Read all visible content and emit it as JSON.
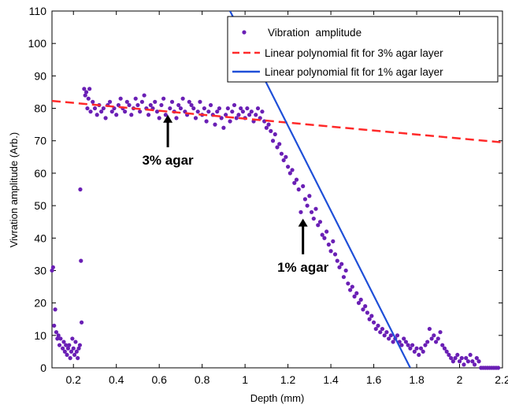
{
  "chart_data": {
    "type": "scatter",
    "xlabel": "Depth (mm)",
    "ylabel": "Vivration amplitude (Arb.)",
    "xlim": [
      0.1,
      2.2
    ],
    "ylim": [
      0,
      110
    ],
    "xticks": [
      0.2,
      0.4,
      0.6,
      0.8,
      1,
      1.2,
      1.4,
      1.6,
      1.8,
      2,
      2.2
    ],
    "yticks": [
      0,
      10,
      20,
      30,
      40,
      50,
      60,
      70,
      80,
      90,
      100,
      110
    ],
    "grid": false,
    "legend_position": "top-right",
    "series": [
      {
        "name": "Vibration  amplitude",
        "kind": "points",
        "color": "#6a1fb5",
        "points": [
          [
            0.1,
            30
          ],
          [
            0.105,
            31
          ],
          [
            0.11,
            13
          ],
          [
            0.115,
            18
          ],
          [
            0.12,
            11
          ],
          [
            0.125,
            9
          ],
          [
            0.13,
            10
          ],
          [
            0.135,
            7
          ],
          [
            0.14,
            9
          ],
          [
            0.15,
            6
          ],
          [
            0.155,
            8
          ],
          [
            0.16,
            5
          ],
          [
            0.165,
            7
          ],
          [
            0.17,
            4
          ],
          [
            0.175,
            6
          ],
          [
            0.18,
            7
          ],
          [
            0.185,
            3
          ],
          [
            0.19,
            5
          ],
          [
            0.195,
            9
          ],
          [
            0.2,
            6
          ],
          [
            0.205,
            4
          ],
          [
            0.21,
            8
          ],
          [
            0.215,
            5
          ],
          [
            0.22,
            3
          ],
          [
            0.225,
            6
          ],
          [
            0.23,
            7
          ],
          [
            0.232,
            55
          ],
          [
            0.235,
            33
          ],
          [
            0.238,
            14
          ],
          [
            0.25,
            86
          ],
          [
            0.255,
            84
          ],
          [
            0.26,
            85
          ],
          [
            0.265,
            80
          ],
          [
            0.27,
            83
          ],
          [
            0.275,
            86
          ],
          [
            0.28,
            79
          ],
          [
            0.29,
            82
          ],
          [
            0.3,
            80
          ],
          [
            0.31,
            78
          ],
          [
            0.32,
            81
          ],
          [
            0.33,
            79
          ],
          [
            0.34,
            80
          ],
          [
            0.35,
            77
          ],
          [
            0.36,
            81
          ],
          [
            0.37,
            82
          ],
          [
            0.38,
            79
          ],
          [
            0.39,
            80
          ],
          [
            0.4,
            78
          ],
          [
            0.41,
            81
          ],
          [
            0.42,
            83
          ],
          [
            0.43,
            80
          ],
          [
            0.44,
            79
          ],
          [
            0.45,
            82
          ],
          [
            0.46,
            81
          ],
          [
            0.47,
            78
          ],
          [
            0.48,
            80
          ],
          [
            0.49,
            83
          ],
          [
            0.5,
            81
          ],
          [
            0.51,
            79
          ],
          [
            0.52,
            82
          ],
          [
            0.53,
            84
          ],
          [
            0.54,
            80
          ],
          [
            0.55,
            78
          ],
          [
            0.56,
            81
          ],
          [
            0.57,
            80
          ],
          [
            0.58,
            82
          ],
          [
            0.59,
            79
          ],
          [
            0.6,
            77
          ],
          [
            0.61,
            81
          ],
          [
            0.62,
            83
          ],
          [
            0.63,
            78
          ],
          [
            0.64,
            76
          ],
          [
            0.65,
            80
          ],
          [
            0.66,
            82
          ],
          [
            0.67,
            79
          ],
          [
            0.68,
            77
          ],
          [
            0.69,
            81
          ],
          [
            0.7,
            80
          ],
          [
            0.71,
            83
          ],
          [
            0.72,
            79
          ],
          [
            0.73,
            78
          ],
          [
            0.74,
            82
          ],
          [
            0.75,
            81
          ],
          [
            0.76,
            80
          ],
          [
            0.77,
            77
          ],
          [
            0.78,
            79
          ],
          [
            0.79,
            82
          ],
          [
            0.8,
            78
          ],
          [
            0.81,
            80
          ],
          [
            0.82,
            76
          ],
          [
            0.83,
            79
          ],
          [
            0.84,
            81
          ],
          [
            0.85,
            78
          ],
          [
            0.86,
            75
          ],
          [
            0.87,
            79
          ],
          [
            0.88,
            80
          ],
          [
            0.89,
            77
          ],
          [
            0.9,
            74
          ],
          [
            0.91,
            78
          ],
          [
            0.92,
            80
          ],
          [
            0.93,
            76
          ],
          [
            0.94,
            79
          ],
          [
            0.95,
            81
          ],
          [
            0.96,
            77
          ],
          [
            0.97,
            78
          ],
          [
            0.98,
            80
          ],
          [
            0.99,
            79
          ],
          [
            1.0,
            77
          ],
          [
            1.01,
            80
          ],
          [
            1.02,
            78
          ],
          [
            1.03,
            79
          ],
          [
            1.04,
            76
          ],
          [
            1.05,
            78
          ],
          [
            1.06,
            80
          ],
          [
            1.07,
            77
          ],
          [
            1.08,
            79
          ],
          [
            1.09,
            76
          ],
          [
            1.1,
            74
          ],
          [
            1.11,
            75
          ],
          [
            1.12,
            73
          ],
          [
            1.13,
            70
          ],
          [
            1.14,
            72
          ],
          [
            1.15,
            68
          ],
          [
            1.16,
            69
          ],
          [
            1.17,
            66
          ],
          [
            1.18,
            64
          ],
          [
            1.19,
            65
          ],
          [
            1.2,
            62
          ],
          [
            1.21,
            60
          ],
          [
            1.22,
            61
          ],
          [
            1.23,
            57
          ],
          [
            1.24,
            58
          ],
          [
            1.25,
            55
          ],
          [
            1.26,
            48
          ],
          [
            1.27,
            56
          ],
          [
            1.28,
            52
          ],
          [
            1.29,
            50
          ],
          [
            1.3,
            53
          ],
          [
            1.31,
            48
          ],
          [
            1.32,
            46
          ],
          [
            1.33,
            49
          ],
          [
            1.34,
            44
          ],
          [
            1.35,
            45
          ],
          [
            1.36,
            41
          ],
          [
            1.37,
            40
          ],
          [
            1.38,
            42
          ],
          [
            1.39,
            38
          ],
          [
            1.4,
            36
          ],
          [
            1.41,
            39
          ],
          [
            1.42,
            35
          ],
          [
            1.43,
            33
          ],
          [
            1.44,
            31
          ],
          [
            1.45,
            32
          ],
          [
            1.46,
            28
          ],
          [
            1.47,
            30
          ],
          [
            1.48,
            26
          ],
          [
            1.49,
            24
          ],
          [
            1.5,
            25
          ],
          [
            1.51,
            22
          ],
          [
            1.52,
            23
          ],
          [
            1.53,
            20
          ],
          [
            1.54,
            21
          ],
          [
            1.55,
            18
          ],
          [
            1.56,
            19
          ],
          [
            1.57,
            17
          ],
          [
            1.58,
            15
          ],
          [
            1.59,
            16
          ],
          [
            1.6,
            14
          ],
          [
            1.61,
            12
          ],
          [
            1.62,
            13
          ],
          [
            1.63,
            11
          ],
          [
            1.64,
            12
          ],
          [
            1.65,
            10
          ],
          [
            1.66,
            11
          ],
          [
            1.67,
            9
          ],
          [
            1.68,
            10
          ],
          [
            1.69,
            8
          ],
          [
            1.7,
            9
          ],
          [
            1.71,
            10
          ],
          [
            1.72,
            8
          ],
          [
            1.73,
            7
          ],
          [
            1.74,
            9
          ],
          [
            1.75,
            8
          ],
          [
            1.76,
            7
          ],
          [
            1.77,
            6
          ],
          [
            1.78,
            7
          ],
          [
            1.79,
            5
          ],
          [
            1.8,
            6
          ],
          [
            1.81,
            4
          ],
          [
            1.82,
            6
          ],
          [
            1.83,
            5
          ],
          [
            1.84,
            7
          ],
          [
            1.85,
            8
          ],
          [
            1.86,
            12
          ],
          [
            1.87,
            9
          ],
          [
            1.88,
            10
          ],
          [
            1.89,
            8
          ],
          [
            1.9,
            9
          ],
          [
            1.91,
            11
          ],
          [
            1.92,
            7
          ],
          [
            1.93,
            6
          ],
          [
            1.94,
            5
          ],
          [
            1.95,
            4
          ],
          [
            1.96,
            3
          ],
          [
            1.97,
            2
          ],
          [
            1.98,
            3
          ],
          [
            1.99,
            4
          ],
          [
            2.0,
            2
          ],
          [
            2.01,
            3
          ],
          [
            2.02,
            1
          ],
          [
            2.03,
            3
          ],
          [
            2.04,
            2
          ],
          [
            2.05,
            4
          ],
          [
            2.06,
            2
          ],
          [
            2.07,
            1
          ],
          [
            2.08,
            3
          ],
          [
            2.09,
            2
          ],
          [
            2.1,
            0
          ],
          [
            2.11,
            0
          ],
          [
            2.12,
            0
          ],
          [
            2.13,
            0
          ],
          [
            2.14,
            0
          ],
          [
            2.15,
            0
          ],
          [
            2.16,
            0
          ],
          [
            2.17,
            0
          ],
          [
            2.18,
            0
          ]
        ]
      },
      {
        "name": "Linear polynomial fit for 3% agar layer",
        "kind": "line",
        "style": "dashed",
        "color": "#ff2a2a",
        "x": [
          0.1,
          2.2
        ],
        "y": [
          82.3,
          69.5
        ]
      },
      {
        "name": "Linear polynomial fit for 1% agar layer",
        "kind": "line",
        "style": "solid",
        "color": "#1f4fd8",
        "x": [
          0.93,
          1.77
        ],
        "y": [
          110,
          0
        ]
      }
    ],
    "annotations": [
      {
        "text": "3% agar",
        "x": 0.64,
        "y": 70,
        "arrow_from_y": 68,
        "arrow_to_y": 78
      },
      {
        "text": "1% agar",
        "x": 1.27,
        "y": 33,
        "arrow_from_y": 35,
        "arrow_to_y": 46
      }
    ]
  }
}
